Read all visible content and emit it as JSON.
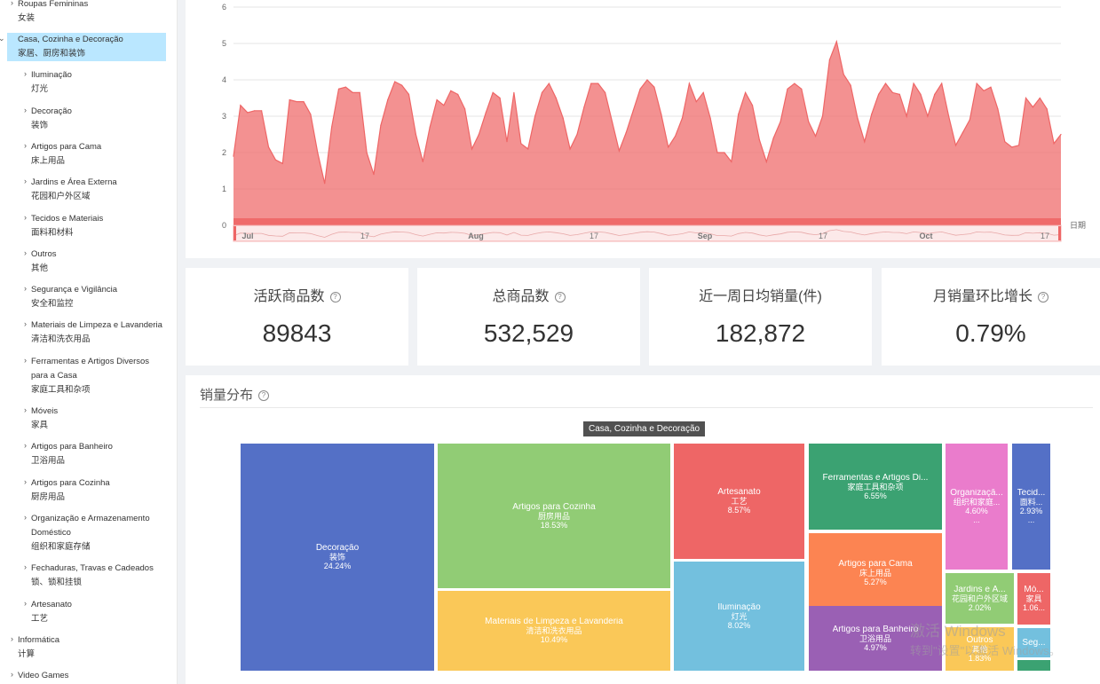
{
  "sidebar": {
    "items": [
      {
        "en": "Roupas Femininas",
        "zh": "女装"
      },
      {
        "en": "Casa, Cozinha e Decoração",
        "zh": "家居、厨房和装饰"
      },
      {
        "en": "Iluminação",
        "zh": "灯光"
      },
      {
        "en": "Decoração",
        "zh": "装饰"
      },
      {
        "en": "Artigos para Cama",
        "zh": "床上用品"
      },
      {
        "en": "Jardins e Área Externa",
        "zh": "花园和户外区域"
      },
      {
        "en": "Tecidos e Materiais",
        "zh": "面料和材料"
      },
      {
        "en": "Outros",
        "zh": "其他"
      },
      {
        "en": "Segurança e Vigilância",
        "zh": "安全和监控"
      },
      {
        "en": "Materiais de Limpeza e Lavanderia",
        "zh": "清洁和洗衣用品"
      },
      {
        "en": "Ferramentas e Artigos Diversos",
        "en2": "para a Casa",
        "zh": "家庭工具和杂项"
      },
      {
        "en": "Móveis",
        "zh": "家具"
      },
      {
        "en": "Artigos para Banheiro",
        "zh": "卫浴用品"
      },
      {
        "en": "Artigos para Cozinha",
        "zh": "厨房用品"
      },
      {
        "en": "Organização e Armazenamento",
        "en2": "Doméstico",
        "zh": "组织和家庭存储"
      },
      {
        "en": "Fechaduras, Travas e Cadeados",
        "zh": "锁、锁和挂锁"
      },
      {
        "en": "Artesanato",
        "zh": "工艺"
      },
      {
        "en": "Informática",
        "zh": "计算"
      },
      {
        "en": "Video Games",
        "zh": ""
      }
    ]
  },
  "chart_data": {
    "type": "area",
    "color": "#ee6666",
    "ylim": [
      0,
      6
    ],
    "yticks": [
      "0",
      "1",
      "2",
      "3",
      "4",
      "5",
      "6"
    ],
    "xaxis_name": "日期",
    "values": [
      1.9,
      3.3,
      3.1,
      3.15,
      3.15,
      2.15,
      1.8,
      1.7,
      3.45,
      3.4,
      3.4,
      3.05,
      2.0,
      1.15,
      2.7,
      3.75,
      3.8,
      3.65,
      3.65,
      2.0,
      1.4,
      2.75,
      3.45,
      3.95,
      3.85,
      3.6,
      2.5,
      1.75,
      2.7,
      3.45,
      3.3,
      3.7,
      3.6,
      3.2,
      2.1,
      2.5,
      3.1,
      3.65,
      3.5,
      2.3,
      3.65,
      2.25,
      2.1,
      3.0,
      3.65,
      3.9,
      3.5,
      2.95,
      2.1,
      2.5,
      3.25,
      3.9,
      3.9,
      3.65,
      2.85,
      2.05,
      2.55,
      3.15,
      3.75,
      4.0,
      3.8,
      3.05,
      2.15,
      2.45,
      2.95,
      3.9,
      3.4,
      3.65,
      2.95,
      2.0,
      2.0,
      1.75,
      3.05,
      3.65,
      3.3,
      2.35,
      1.75,
      2.4,
      2.85,
      3.75,
      3.9,
      3.75,
      2.85,
      2.45,
      3.0,
      4.55,
      5.05,
      4.15,
      3.85,
      2.95,
      2.3,
      3.05,
      3.6,
      3.9,
      3.65,
      3.6,
      3.0,
      3.9,
      3.6,
      3.0,
      3.6,
      3.9,
      3.0,
      2.2,
      2.55,
      2.9,
      3.9,
      3.7,
      3.8,
      3.2,
      2.3,
      2.15,
      2.2,
      3.5,
      3.25,
      3.5,
      3.2,
      2.25,
      2.5
    ],
    "slider_labels": [
      "Jul",
      "17",
      "Aug",
      "17",
      "Sep",
      "17",
      "Oct",
      "17"
    ]
  },
  "stats": [
    {
      "title": "活跃商品数",
      "value": "89843"
    },
    {
      "title": "总商品数",
      "value": "532,529"
    },
    {
      "title": "近一周日均销量(件)",
      "value": "182,872"
    },
    {
      "title": "月销量环比增长",
      "value": "0.79%"
    }
  ],
  "distribution": {
    "title": "销量分布",
    "tooltip": "Casa, Cozinha e Decoração",
    "treemap": [
      {
        "name": "Decoração",
        "zh": "装饰",
        "pct": "24.24%",
        "color": "#5470c6"
      },
      {
        "name": "Artigos para Cozinha",
        "zh": "厨房用品",
        "pct": "18.53%",
        "color": "#91cc75"
      },
      {
        "name": "Materiais de Limpeza e Lavanderia",
        "zh": "清洁和洗衣用品",
        "pct": "10.49%",
        "color": "#fac858"
      },
      {
        "name": "Artesanato",
        "zh": "工艺",
        "pct": "8.57%",
        "color": "#ee6666"
      },
      {
        "name": "Iluminação",
        "zh": "灯光",
        "pct": "8.02%",
        "color": "#73c0de"
      },
      {
        "name": "Ferramentas e Artigos Di...",
        "zh": "家庭工具和杂项",
        "pct": "6.55%",
        "color": "#3ba272"
      },
      {
        "name": "Artigos para Cama",
        "zh": "床上用品",
        "pct": "5.27%",
        "color": "#fc8452"
      },
      {
        "name": "Artigos para Banheiro",
        "zh": "卫浴用品",
        "pct": "4.97%",
        "color": "#9a60b4"
      },
      {
        "name": "Organizaçã...",
        "zh": "组织和家庭...",
        "pct": "4.60%",
        "extra": "...",
        "color": "#ea7ccc"
      },
      {
        "name": "Tecid...",
        "zh": "面料...",
        "pct": "2.93%",
        "extra": "...",
        "color": "#5470c6"
      },
      {
        "name": "Jardins e Á...",
        "zh": "花园和户外区域",
        "pct": "2.02%",
        "color": "#91cc75"
      },
      {
        "name": "Outros",
        "zh": "其他",
        "pct": "1.83%",
        "color": "#fac858"
      },
      {
        "name": "Mó...",
        "zh": "家具",
        "pct": "1.06...",
        "color": "#ee6666"
      },
      {
        "name": "Seg...",
        "zh": "",
        "pct": "",
        "color": "#73c0de"
      },
      {
        "name": "",
        "zh": "",
        "pct": "",
        "color": "#3ba272"
      }
    ]
  },
  "watermark": {
    "line1": "激活 Windows",
    "line2": "转到\"设置\"以激活 Windows。"
  }
}
